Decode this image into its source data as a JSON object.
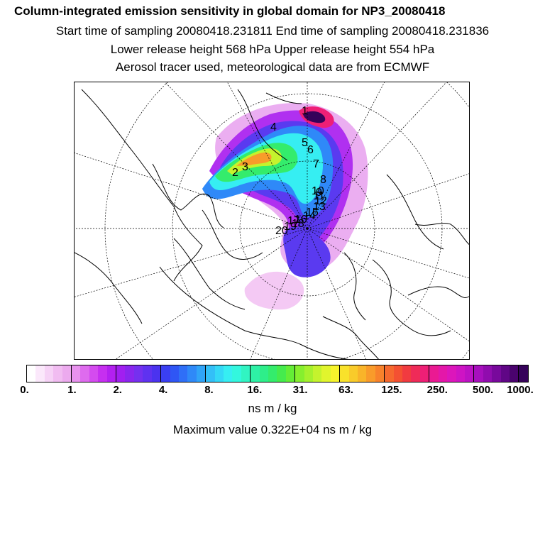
{
  "header": {
    "title": "Column-integrated emission sensitivity in global domain for NP3_20080418",
    "sampling": "Start time of sampling 20080418.231811     End time of sampling 20080418.231836",
    "release": "Lower release height  568 hPa        Upper release height  554 hPa",
    "note": "Aerosol tracer used, meteorological data are from ECMWF"
  },
  "map": {
    "projection": "north-polar-stereographic",
    "track_labels": [
      "1",
      "2",
      "3",
      "4",
      "5",
      "6",
      "7",
      "8",
      "9",
      "10",
      "11",
      "12",
      "13",
      "14",
      "15",
      "16",
      "17",
      "18",
      "19",
      "20"
    ]
  },
  "legend": {
    "tick_labels": [
      "0.",
      "1.",
      "2.",
      "4.",
      "8.",
      "16.",
      "31.",
      "63.",
      "125.",
      "250.",
      "500.",
      "1000."
    ],
    "colors": [
      "#ffffff",
      "#fbe8fb",
      "#f6d2f6",
      "#f1bcf1",
      "#ecaaee",
      "#e892ee",
      "#de6bee",
      "#d44bef",
      "#c62ff0",
      "#b320f0",
      "#a11ff0",
      "#8a26ee",
      "#7530ef",
      "#5f32f0",
      "#4b33ef",
      "#3a3ff2",
      "#2f56f5",
      "#2f6ff7",
      "#2f89f8",
      "#30a4f8",
      "#33bff7",
      "#34d8f6",
      "#36eef2",
      "#33f7de",
      "#31f4c2",
      "#2ef1a6",
      "#2eee8a",
      "#34ec6c",
      "#45eb4d",
      "#64ed36",
      "#86ef2e",
      "#a6f12d",
      "#c5f32d",
      "#e1f52d",
      "#f7f42c",
      "#f9e22b",
      "#f9cb2a",
      "#f9b429",
      "#f99b2a",
      "#f8822b",
      "#f6692e",
      "#f45132",
      "#f13b40",
      "#ef2b58",
      "#ee1f76",
      "#ea1a92",
      "#e417a9",
      "#dc16bb",
      "#ce14c4",
      "#bc12c4",
      "#a70fbd",
      "#900cae",
      "#78099c",
      "#600686",
      "#4a036e",
      "#36025a"
    ],
    "unit": "ns m / kg",
    "max_value": "Maximum value  0.322E+04 ns m / kg"
  }
}
